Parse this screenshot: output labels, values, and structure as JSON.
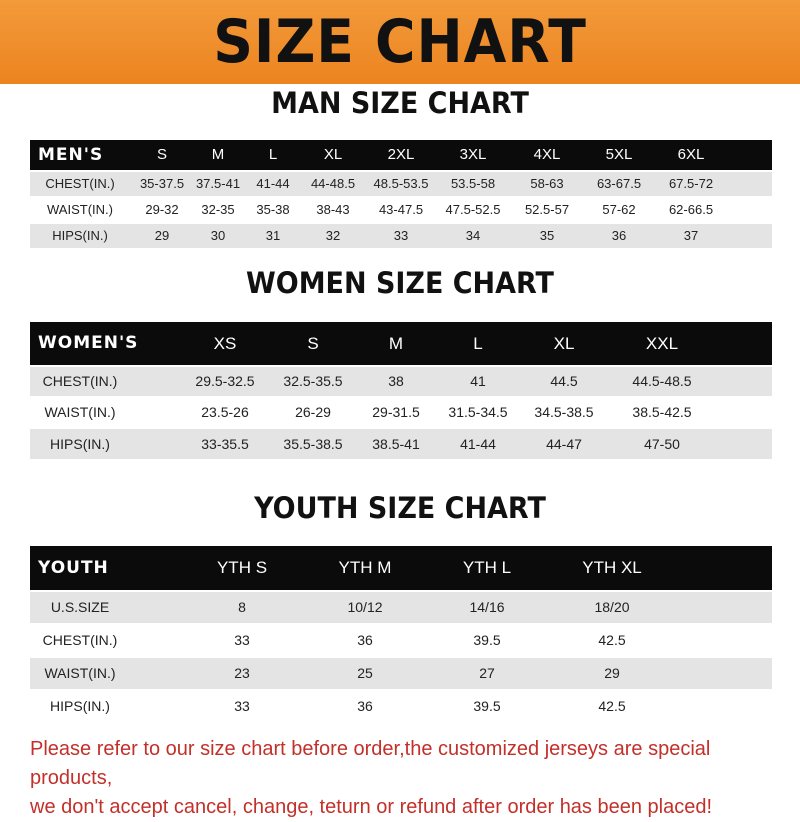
{
  "banner_title": "SIZE CHART",
  "men": {
    "title": "MAN SIZE CHART",
    "header_label": "MEN'S",
    "sizes": [
      "S",
      "M",
      "L",
      "XL",
      "2XL",
      "3XL",
      "4XL",
      "5XL",
      "6XL"
    ],
    "rows": [
      {
        "label": "CHEST(IN.)",
        "values": [
          "35-37.5",
          "37.5-41",
          "41-44",
          "44-48.5",
          "48.5-53.5",
          "53.5-58",
          "58-63",
          "63-67.5",
          "67.5-72"
        ]
      },
      {
        "label": "WAIST(IN.)",
        "values": [
          "29-32",
          "32-35",
          "35-38",
          "38-43",
          "43-47.5",
          "47.5-52.5",
          "52.5-57",
          "57-62",
          "62-66.5"
        ]
      },
      {
        "label": "HIPS(IN.)",
        "values": [
          "29",
          "30",
          "31",
          "32",
          "33",
          "34",
          "35",
          "36",
          "37"
        ]
      }
    ]
  },
  "women": {
    "title": "WOMEN SIZE CHART",
    "header_label": "WOMEN'S",
    "sizes": [
      "XS",
      "S",
      "M",
      "L",
      "XL",
      "XXL"
    ],
    "rows": [
      {
        "label": "CHEST(IN.)",
        "values": [
          "29.5-32.5",
          "32.5-35.5",
          "38",
          "41",
          "44.5",
          "44.5-48.5"
        ]
      },
      {
        "label": "WAIST(IN.)",
        "values": [
          "23.5-26",
          "26-29",
          "29-31.5",
          "31.5-34.5",
          "34.5-38.5",
          "38.5-42.5"
        ]
      },
      {
        "label": "HIPS(IN.)",
        "values": [
          "33-35.5",
          "35.5-38.5",
          "38.5-41",
          "41-44",
          "44-47",
          "47-50"
        ]
      }
    ]
  },
  "youth": {
    "title": "YOUTH SIZE CHART",
    "header_label": "YOUTH",
    "sizes": [
      "YTH S",
      "YTH M",
      "YTH L",
      "YTH XL"
    ],
    "rows": [
      {
        "label": "U.S.SIZE",
        "values": [
          "8",
          "10/12",
          "14/16",
          "18/20"
        ]
      },
      {
        "label": "CHEST(IN.)",
        "values": [
          "33",
          "36",
          "39.5",
          "42.5"
        ]
      },
      {
        "label": "WAIST(IN.)",
        "values": [
          "23",
          "25",
          "27",
          "29"
        ]
      },
      {
        "label": "HIPS(IN.)",
        "values": [
          "33",
          "36",
          "39.5",
          "42.5"
        ]
      }
    ]
  },
  "notice": [
    "Please refer to our size chart before order,the customized jerseys are special products,",
    "we don't accept cancel, change, teturn or refund after order has been placed!"
  ],
  "colors": {
    "banner": "#ec8420",
    "header_row": "#0b0b0b",
    "stripe": "#e4e4e4",
    "notice": "#c3302a"
  }
}
